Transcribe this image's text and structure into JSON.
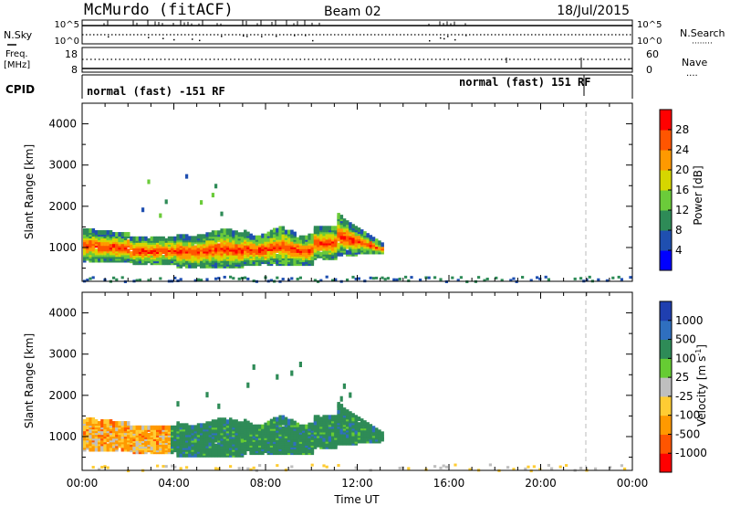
{
  "header": {
    "station": "McMurdo (fitACF)",
    "beam": "Beam 02",
    "date": "18/Jul/2015"
  },
  "strip_nsky": {
    "left_label": "N.Sky",
    "tick_top": "10^5",
    "tick_bottom": "10^0",
    "right_tick_top": "10^5",
    "right_tick_bottom": "10^0",
    "right_label": "N.Search",
    "right_key": "········"
  },
  "strip_freq": {
    "left_label_1": "Freq.",
    "left_label_2": "[MHz]",
    "tick_top": "18",
    "tick_bottom": "8",
    "right_tick_top": "60",
    "right_tick_bottom": "0",
    "right_label": "Nave",
    "right_key": "····"
  },
  "strip_cpid": {
    "left_label": "CPID",
    "mode_1": "normal (fast) -151 RF",
    "mode_2": "normal (fast) 151 RF"
  },
  "colors": {
    "power_scale": [
      "#0000ff",
      "#1f4fb0",
      "#2e8b57",
      "#6bcb3a",
      "#d6d600",
      "#ff9900",
      "#ff5500",
      "#ff0000"
    ],
    "velocity_scale": [
      "#1f3fb0",
      "#2f6fbf",
      "#2e8b57",
      "#66cc33",
      "#bfbfbf",
      "#ffcc33",
      "#ff9900",
      "#ff5500",
      "#ff0000"
    ]
  },
  "chart_data": [
    {
      "type": "heatmap",
      "title": "",
      "ylabel": "Slant Range [km]",
      "xlabel": "",
      "ylim": [
        180,
        4500
      ],
      "xlim_hours": [
        0,
        24
      ],
      "yticks": [
        "1000",
        "2000",
        "3000",
        "4000"
      ],
      "colorbar_label": "Power [dB]",
      "colorbar_ticks": [
        "4",
        "8",
        "12",
        "16",
        "20",
        "24",
        "28"
      ],
      "crange": [
        0,
        32
      ]
    },
    {
      "type": "heatmap",
      "title": "",
      "ylabel": "Slant Range [km]",
      "xlabel": "Time UT",
      "ylim": [
        180,
        4500
      ],
      "xlim_hours": [
        0,
        24
      ],
      "xticks": [
        "00:00",
        "04:00",
        "08:00",
        "12:00",
        "16:00",
        "20:00",
        "00:00"
      ],
      "yticks": [
        "1000",
        "2000",
        "3000",
        "4000"
      ],
      "colorbar_label": "Velocity [m s^-1]",
      "colorbar_ticks": [
        "1000",
        "500",
        "100",
        "25",
        "-25",
        "-100",
        "-500",
        "-1000"
      ]
    }
  ]
}
